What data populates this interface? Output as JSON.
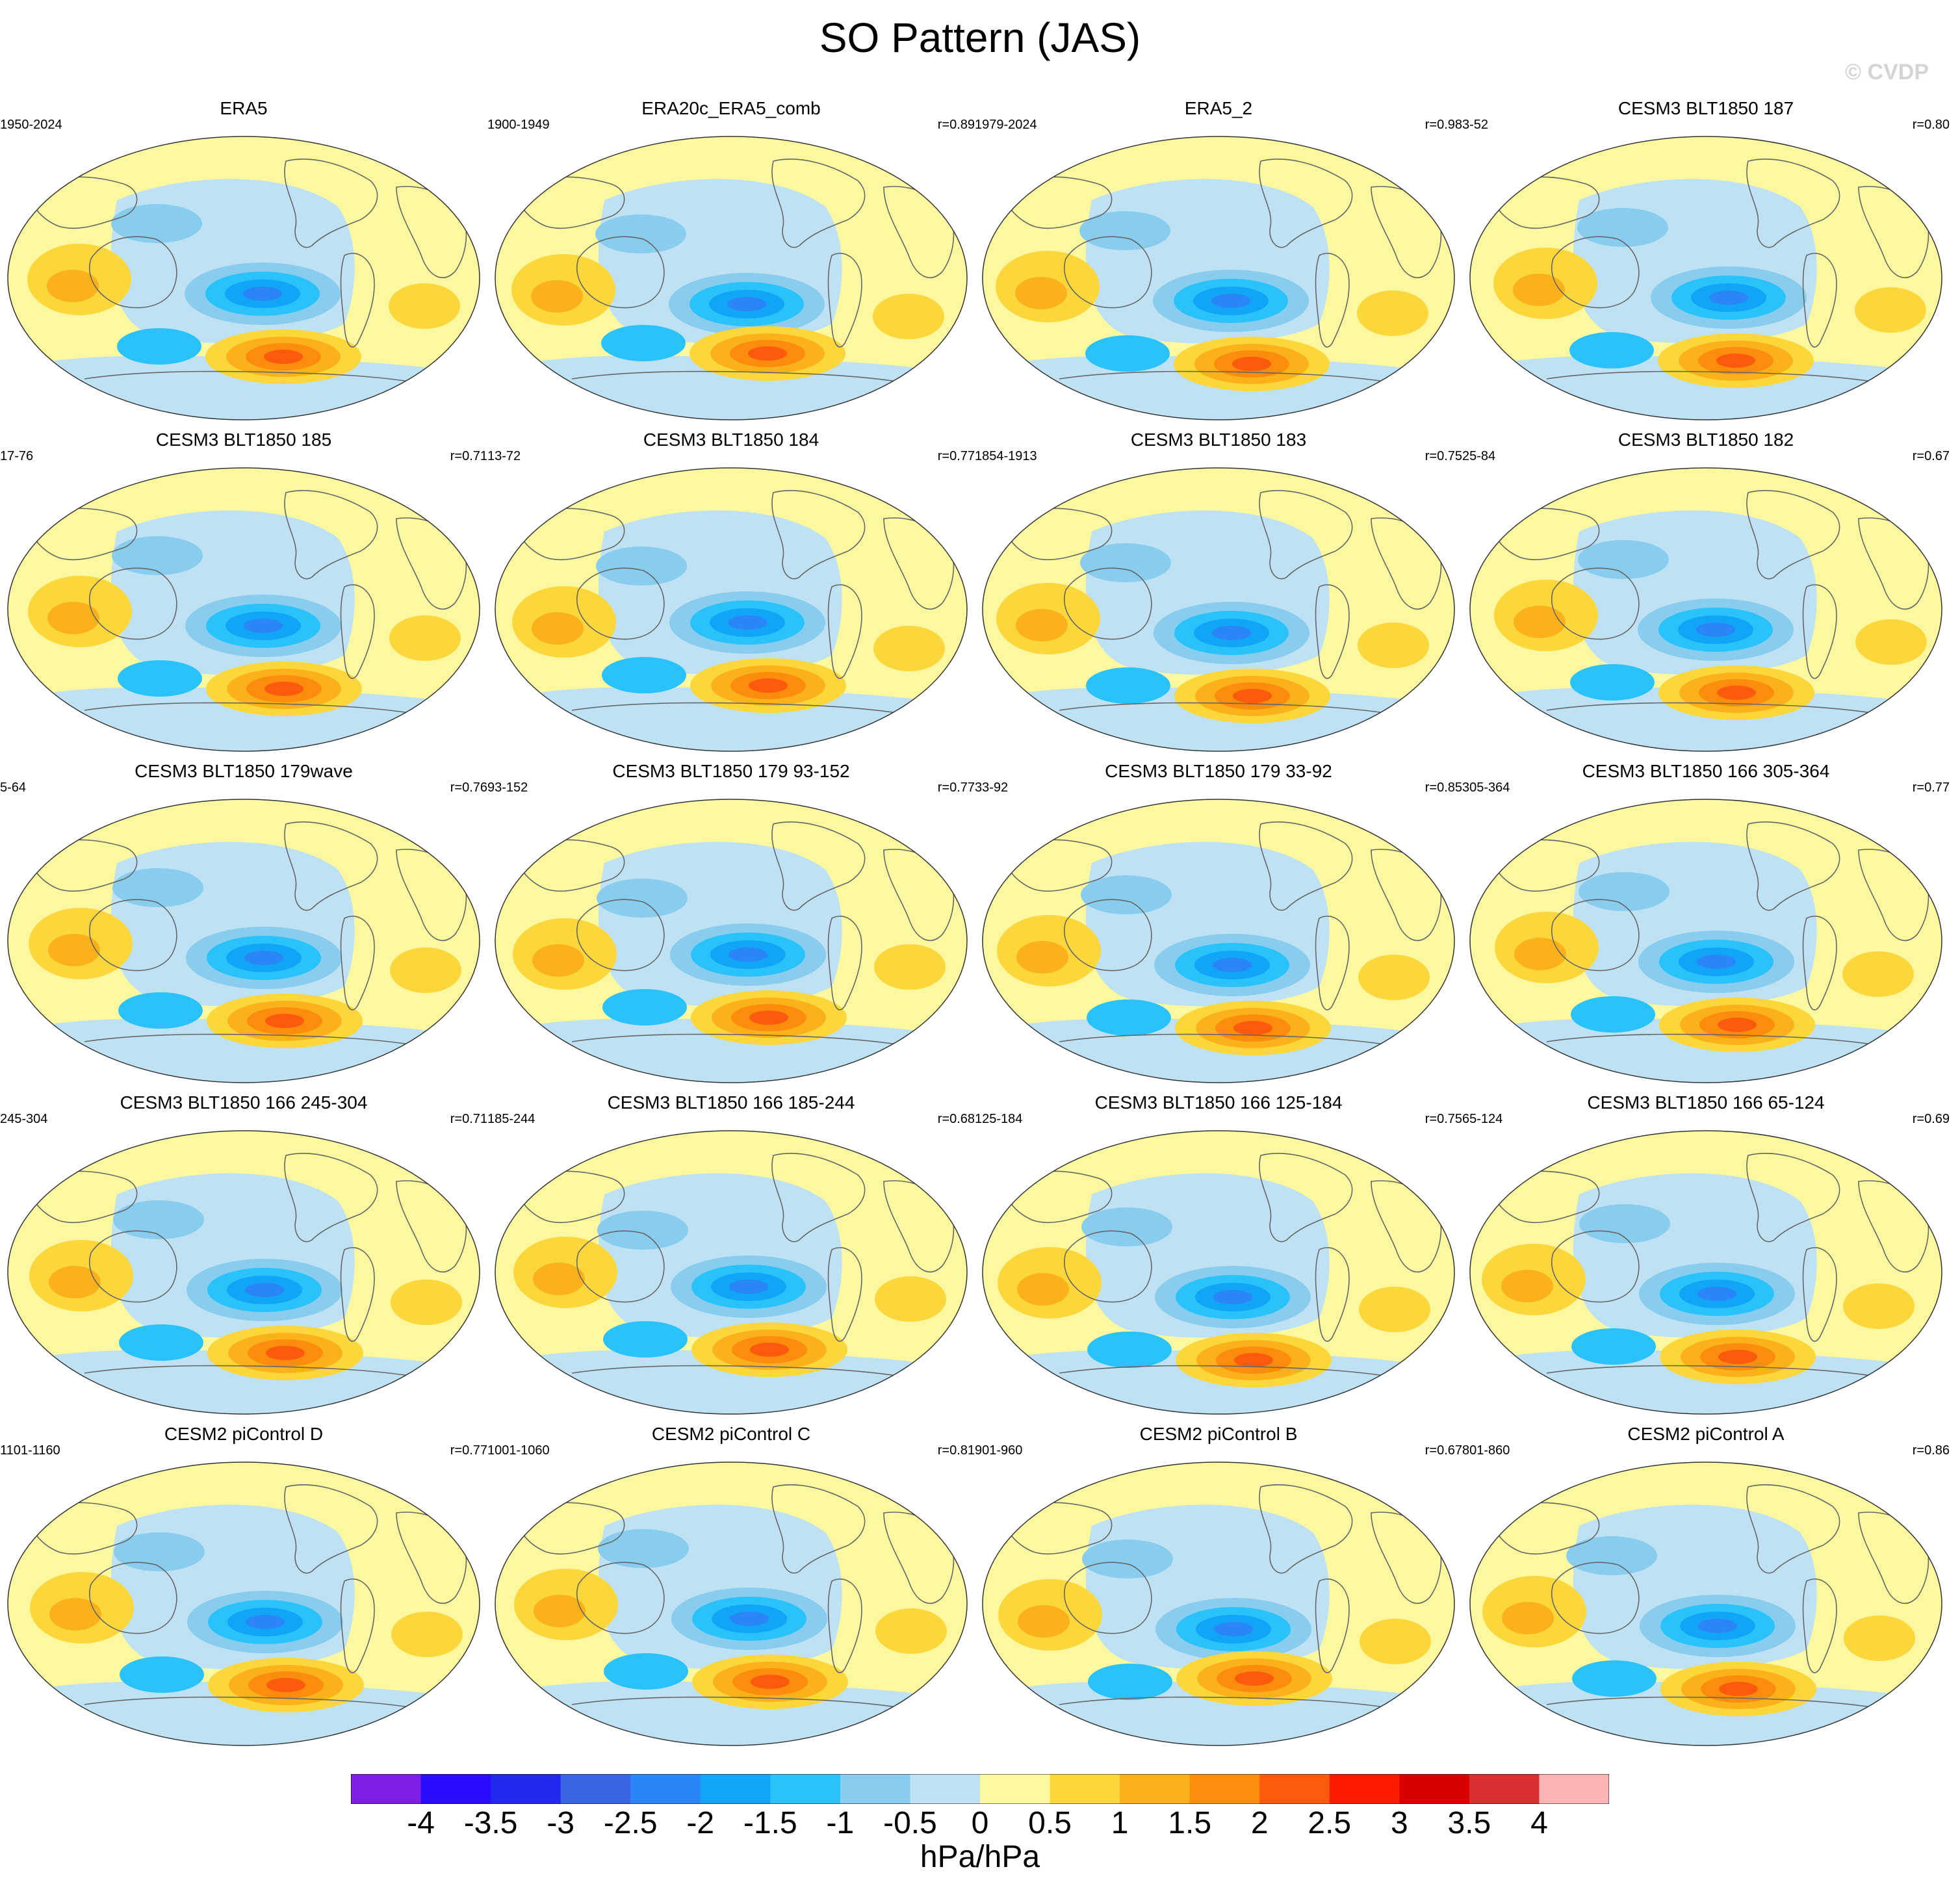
{
  "title": "SO Pattern (JAS)",
  "watermark": "© CVDP",
  "units": "hPa/hPa",
  "colorbar": {
    "ticks": [
      "-4",
      "-3.5",
      "-3",
      "-2.5",
      "-2",
      "-1.5",
      "-1",
      "-0.5",
      "0",
      "0.5",
      "1",
      "1.5",
      "2",
      "2.5",
      "3",
      "3.5",
      "4"
    ],
    "colors": [
      "#7f1fe6",
      "#2a0dfa",
      "#2228ee",
      "#3a66e6",
      "#2a86f6",
      "#12a4f6",
      "#2ac2fa",
      "#88ccee",
      "#bee2f4",
      "#fbf8a0",
      "#fcd73c",
      "#fbb21a",
      "#fb8c0c",
      "#fb5a0c",
      "#fb1c00",
      "#da0000",
      "#d83030",
      "#fcb4b4"
    ]
  },
  "panels": [
    {
      "title": "ERA5",
      "years": "1950-2024",
      "r": ""
    },
    {
      "title": "ERA20c_ERA5_comb",
      "years": "1900-1949",
      "r": "r=0.89"
    },
    {
      "title": "ERA5_2",
      "years": "1979-2024",
      "r": "r=0.98"
    },
    {
      "title": "CESM3 BLT1850 187",
      "years": "3-52",
      "r": "r=0.80"
    },
    {
      "title": "CESM3 BLT1850 185",
      "years": "17-76",
      "r": "r=0.71"
    },
    {
      "title": "CESM3 BLT1850 184",
      "years": "13-72",
      "r": "r=0.77"
    },
    {
      "title": "CESM3 BLT1850 183",
      "years": "1854-1913",
      "r": "r=0.75"
    },
    {
      "title": "CESM3 BLT1850 182",
      "years": "25-84",
      "r": "r=0.67"
    },
    {
      "title": "CESM3 BLT1850 179wave",
      "years": "5-64",
      "r": "r=0.76"
    },
    {
      "title": "CESM3 BLT1850 179 93-152",
      "years": "93-152",
      "r": "r=0.77"
    },
    {
      "title": "CESM3 BLT1850 179 33-92",
      "years": "33-92",
      "r": "r=0.85"
    },
    {
      "title": "CESM3 BLT1850 166 305-364",
      "years": "305-364",
      "r": "r=0.77"
    },
    {
      "title": "CESM3 BLT1850 166 245-304",
      "years": "245-304",
      "r": "r=0.71"
    },
    {
      "title": "CESM3 BLT1850 166 185-244",
      "years": "185-244",
      "r": "r=0.68"
    },
    {
      "title": "CESM3 BLT1850 166 125-184",
      "years": "125-184",
      "r": "r=0.75"
    },
    {
      "title": "CESM3 BLT1850 166 65-124",
      "years": "65-124",
      "r": "r=0.69"
    },
    {
      "title": "CESM2 piControl D",
      "years": "1101-1160",
      "r": "r=0.77"
    },
    {
      "title": "CESM2 piControl C",
      "years": "1001-1060",
      "r": "r=0.81"
    },
    {
      "title": "CESM2 piControl B",
      "years": "901-960",
      "r": "r=0.67"
    },
    {
      "title": "CESM2 piControl A",
      "years": "801-860",
      "r": "r=0.86"
    }
  ]
}
